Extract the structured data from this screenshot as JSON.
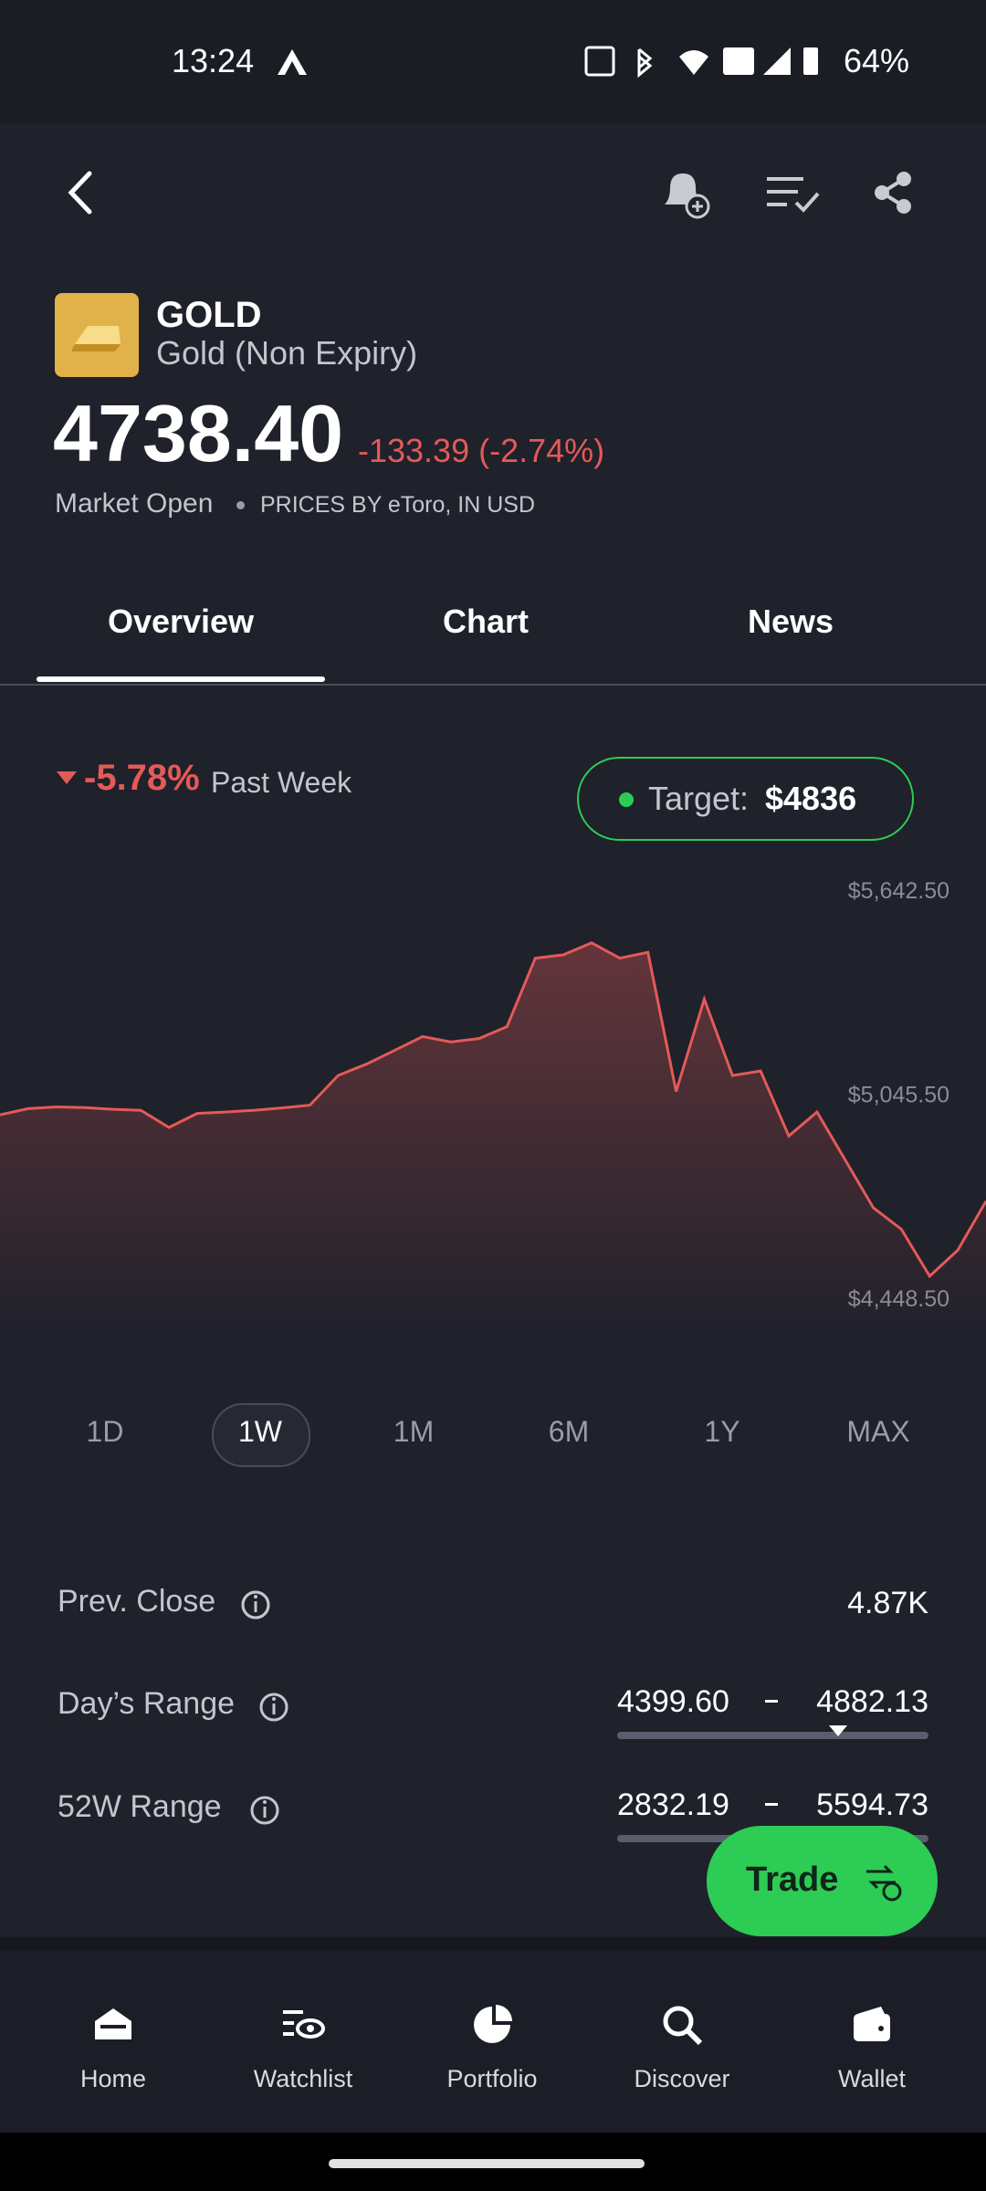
{
  "status": {
    "time": "13:24",
    "battery": "64%"
  },
  "header": {
    "symbol": "GOLD",
    "name": "Gold (Non Expiry)",
    "price": "4738.40",
    "change": "-133.39 (-2.74%)",
    "market": "Market Open",
    "source": "PRICES BY eToro, IN USD"
  },
  "tabs": [
    "Overview",
    "Chart",
    "News"
  ],
  "performance": {
    "change": "-5.78%",
    "period": "Past Week"
  },
  "target": {
    "label": "Target:",
    "value": "$4836"
  },
  "chart_data": {
    "type": "line",
    "color": "#e45a57",
    "values": [
      4992,
      5010,
      5015,
      5013,
      5008,
      5005,
      4955,
      4996,
      5000,
      5005,
      5012,
      5020,
      5107,
      5140,
      5180,
      5221,
      5205,
      5215,
      5250,
      5450,
      5460,
      5495,
      5450,
      5467,
      5060,
      5330,
      5107,
      5120,
      4930,
      5000,
      4860,
      4720,
      4657,
      4520,
      4596,
      4739
    ],
    "ylim": [
      4330,
      5700
    ],
    "yticks": [
      {
        "value": 5642.5,
        "label": "$5,642.50"
      },
      {
        "value": 5045.5,
        "label": "$5,045.50"
      },
      {
        "value": 4448.5,
        "label": "$4,448.50"
      }
    ]
  },
  "ranges": [
    "1D",
    "1W",
    "1M",
    "6M",
    "1Y",
    "MAX"
  ],
  "stats": {
    "prev_close": {
      "label": "Prev. Close",
      "value": "4.87K"
    },
    "days_range": {
      "label": "Day’s Range",
      "low": "4399.60",
      "high": "4882.13"
    },
    "year_range": {
      "label": "52W Range",
      "low": "2832.19",
      "high": "5594.73"
    }
  },
  "trade": "Trade",
  "nav": [
    "Home",
    "Watchlist",
    "Portfolio",
    "Discover",
    "Wallet"
  ]
}
